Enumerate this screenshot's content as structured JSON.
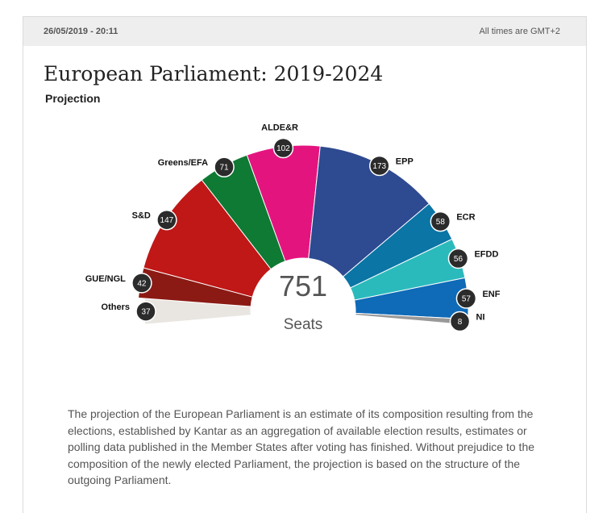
{
  "header": {
    "datetime": "26/05/2019 - 20:11",
    "timezone_note": "All times are GMT+2"
  },
  "title": "European Parliament: 2019-2024",
  "subtitle": "Projection",
  "chart_data": {
    "type": "pie",
    "variant": "parliament-semicircle",
    "total": "751",
    "total_label": "Seats",
    "series": [
      {
        "name": "Others",
        "value": 37,
        "color": "#e9e6e1"
      },
      {
        "name": "GUE/NGL",
        "value": 42,
        "color": "#8b1a14"
      },
      {
        "name": "S&D",
        "value": 147,
        "color": "#c01717"
      },
      {
        "name": "Greens/EFA",
        "value": 71,
        "color": "#0f7a34"
      },
      {
        "name": "ALDE&R",
        "value": 102,
        "color": "#e4147f"
      },
      {
        "name": "EPP",
        "value": 173,
        "color": "#2e4a90"
      },
      {
        "name": "ECR",
        "value": 58,
        "color": "#0b75a5"
      },
      {
        "name": "EFDD",
        "value": 56,
        "color": "#2bbabc"
      },
      {
        "name": "ENF",
        "value": 57,
        "color": "#0f6ab8"
      },
      {
        "name": "NI",
        "value": 8,
        "color": "#999999"
      }
    ]
  },
  "description": "The projection of the European Parliament is an estimate of its composition resulting from the elections, established by Kantar as an aggregation of available election results, estimates or polling data published in the Member States after voting has finished. Without prejudice to the composition of the newly elected Parliament, the projection is based on the structure of the outgoing Parliament."
}
